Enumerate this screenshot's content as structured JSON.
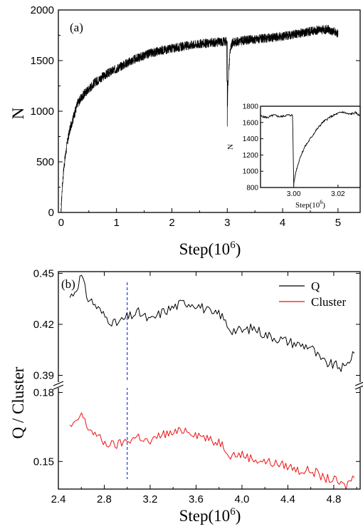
{
  "chart_data": [
    {
      "panel": "(a)",
      "type": "line",
      "title": "",
      "xlabel": "Step(10",
      "xlabel_sup": "6",
      "xlabel_close": ")",
      "ylabel": "N",
      "xlim": [
        -0.05,
        5.4
      ],
      "ylim": [
        0,
        2000
      ],
      "xticks": [
        "0",
        "1",
        "2",
        "3",
        "4",
        "5"
      ],
      "yticks": [
        "0",
        "500",
        "1000",
        "1500",
        "2000"
      ],
      "series": [
        {
          "color": "#000000",
          "x": [
            0,
            0.02,
            0.05,
            0.1,
            0.15,
            0.2,
            0.3,
            0.4,
            0.5,
            0.6,
            0.8,
            1.0,
            1.2,
            1.4,
            1.6,
            1.8,
            2.0,
            2.2,
            2.4,
            2.6,
            2.8,
            2.95,
            2.99,
            3.0,
            3.01,
            3.05,
            3.1,
            3.3,
            3.5,
            3.7,
            4.0,
            4.2,
            4.4,
            4.6,
            4.7,
            4.8,
            4.9,
            5.0
          ],
          "y": [
            40,
            250,
            450,
            650,
            800,
            900,
            1080,
            1160,
            1220,
            1280,
            1360,
            1420,
            1480,
            1530,
            1570,
            1600,
            1620,
            1640,
            1660,
            1670,
            1680,
            1690,
            1690,
            850,
            1250,
            1600,
            1680,
            1700,
            1710,
            1720,
            1740,
            1760,
            1780,
            1800,
            1800,
            1810,
            1790,
            1770
          ]
        }
      ],
      "inset": {
        "type": "line",
        "xlabel": "Step(10",
        "xlabel_sup": "6",
        "xlabel_close": ")",
        "ylabel": "N",
        "xlim": [
          2.985,
          3.03
        ],
        "ylim": [
          800,
          1800
        ],
        "xticks": [
          "3.00",
          "3.02"
        ],
        "yticks": [
          "800",
          "1000",
          "1200",
          "1400",
          "1600",
          "1800"
        ],
        "series": [
          {
            "color": "#000000",
            "x": [
              2.985,
              2.988,
              2.991,
              2.994,
              2.997,
              2.9995,
              3.0,
              3.001,
              3.003,
              3.005,
              3.008,
              3.01,
              3.013,
              3.016,
              3.019,
              3.022,
              3.025,
              3.028,
              3.03
            ],
            "y": [
              1680,
              1660,
              1690,
              1670,
              1690,
              1690,
              840,
              1000,
              1180,
              1300,
              1420,
              1500,
              1600,
              1660,
              1700,
              1730,
              1700,
              1720,
              1680
            ]
          }
        ]
      }
    },
    {
      "panel": "(b)",
      "type": "line",
      "title": "",
      "xlabel": "Step(10",
      "xlabel_sup": "6",
      "xlabel_close": ")",
      "ylabel": "Q / Cluster",
      "xlim": [
        2.4,
        5.03
      ],
      "xticks": [
        "2.4",
        "2.8",
        "3.2",
        "3.6",
        "4.0",
        "4.4",
        "4.8"
      ],
      "upper_axis": {
        "ylim": [
          0.386,
          0.451
        ],
        "yticks": [
          "0.39",
          "0.42",
          "0.45"
        ]
      },
      "lower_axis": {
        "ylim": [
          0.138,
          0.182
        ],
        "yticks": [
          "0.15",
          "0.18"
        ]
      },
      "vertical_line": {
        "x": 3.0,
        "color": "#2233ee",
        "style": "dashed"
      },
      "legend": {
        "placement": "top-right"
      },
      "series": [
        {
          "name": "Q",
          "color": "#000000",
          "axis": "upper",
          "x": [
            2.5,
            2.55,
            2.6,
            2.65,
            2.7,
            2.8,
            2.9,
            3.0,
            3.1,
            3.2,
            3.3,
            3.4,
            3.5,
            3.6,
            3.7,
            3.75,
            3.8,
            3.9,
            4.0,
            4.1,
            4.2,
            4.3,
            4.4,
            4.5,
            4.6,
            4.65,
            4.7,
            4.8,
            4.9,
            4.98
          ],
          "y": [
            0.436,
            0.44,
            0.449,
            0.436,
            0.433,
            0.425,
            0.42,
            0.424,
            0.427,
            0.422,
            0.427,
            0.43,
            0.433,
            0.432,
            0.428,
            0.425,
            0.427,
            0.417,
            0.416,
            0.418,
            0.414,
            0.412,
            0.41,
            0.408,
            0.407,
            0.402,
            0.398,
            0.396,
            0.394,
            0.405
          ]
        },
        {
          "name": "Cluster",
          "color": "#ee1111",
          "axis": "lower",
          "x": [
            2.5,
            2.55,
            2.6,
            2.65,
            2.7,
            2.8,
            2.9,
            3.0,
            3.1,
            3.2,
            3.3,
            3.4,
            3.5,
            3.6,
            3.7,
            3.75,
            3.8,
            3.9,
            4.0,
            4.1,
            4.2,
            4.3,
            4.4,
            4.5,
            4.6,
            4.65,
            4.7,
            4.8,
            4.9,
            4.98
          ],
          "y": [
            0.165,
            0.166,
            0.171,
            0.165,
            0.163,
            0.158,
            0.157,
            0.159,
            0.161,
            0.158,
            0.162,
            0.162,
            0.164,
            0.162,
            0.16,
            0.158,
            0.159,
            0.153,
            0.153,
            0.151,
            0.15,
            0.149,
            0.148,
            0.146,
            0.146,
            0.145,
            0.143,
            0.142,
            0.139,
            0.144
          ]
        }
      ]
    }
  ]
}
